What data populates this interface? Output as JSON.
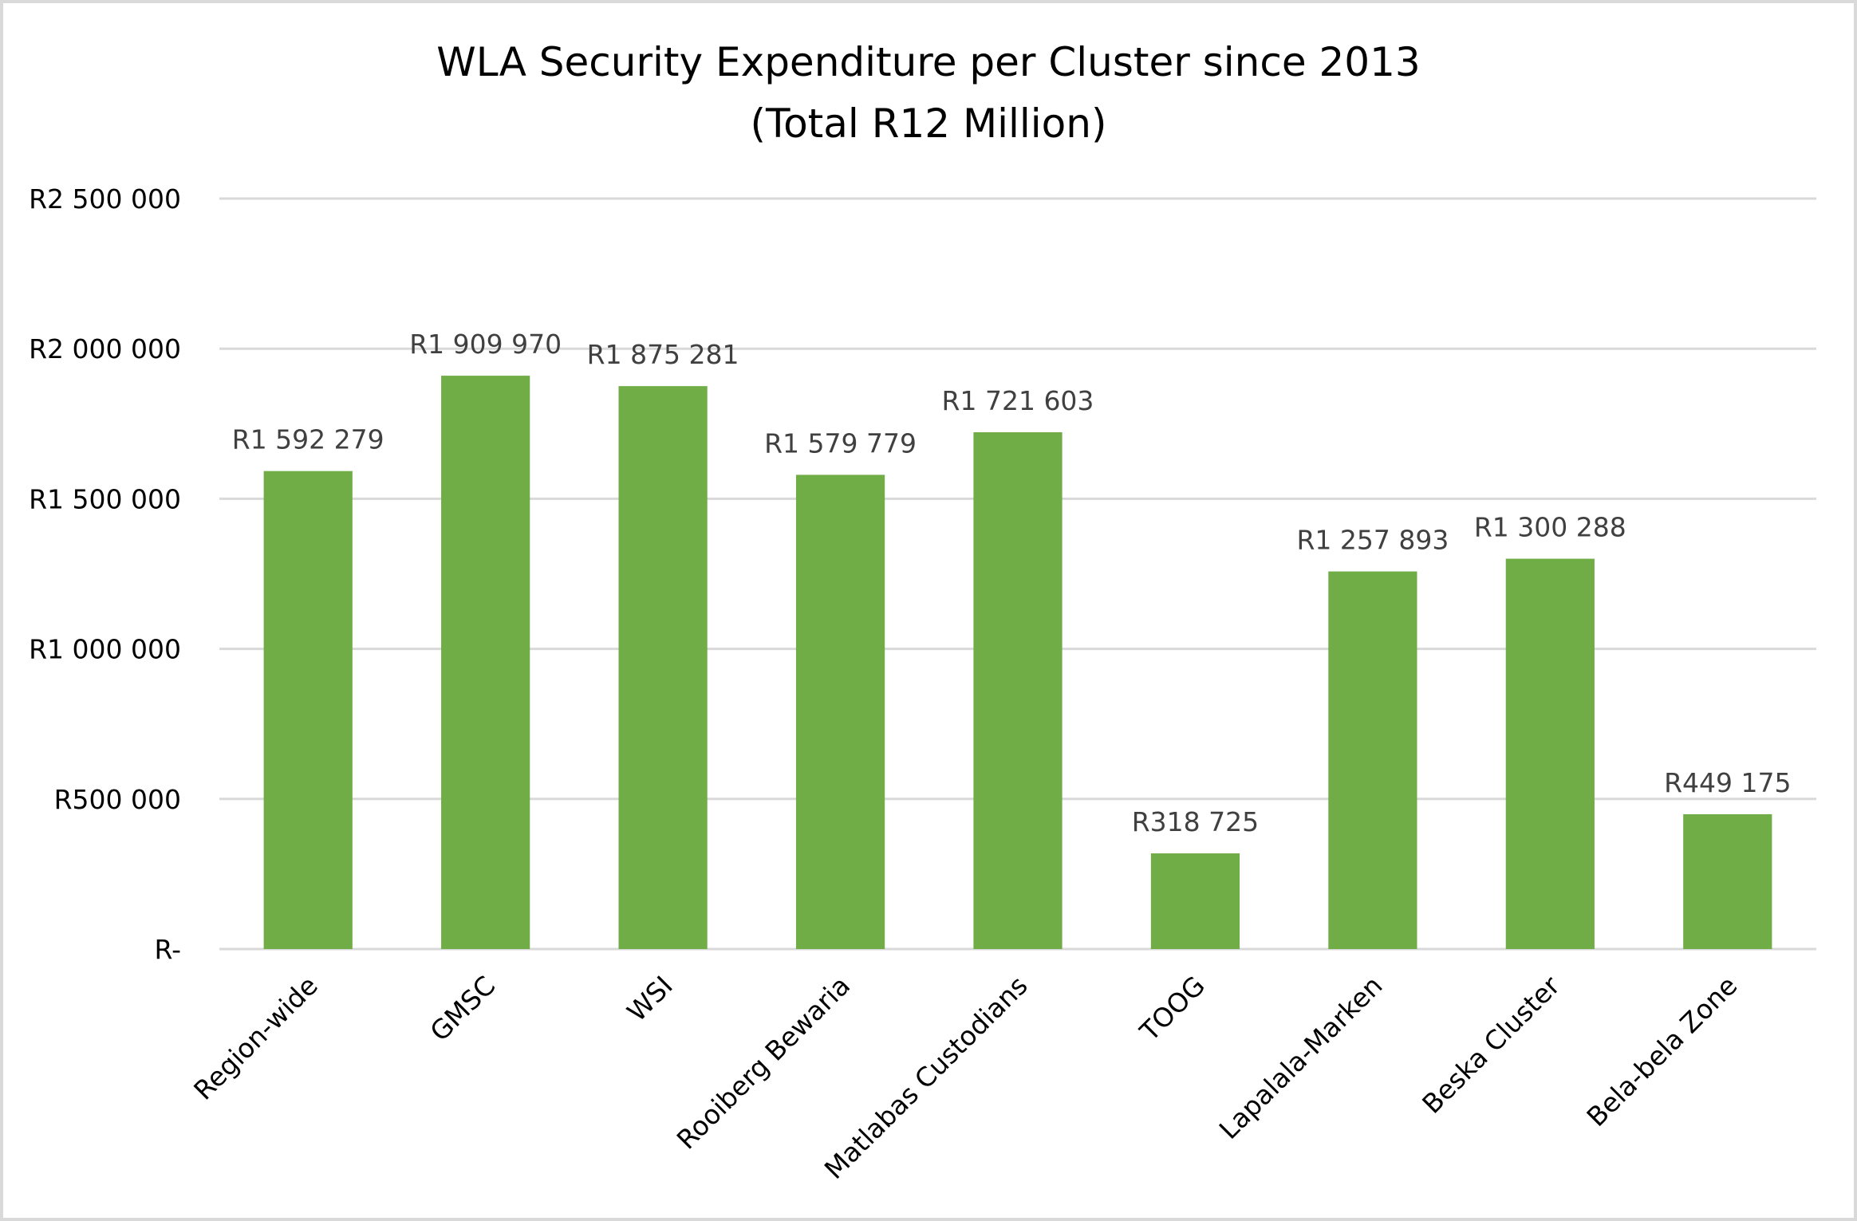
{
  "chart_data": {
    "type": "bar",
    "title": "WLA Security Expenditure per Cluster since 2013",
    "subtitle": "(Total R12 Million)",
    "xlabel": "",
    "ylabel": "",
    "categories": [
      "Region-wide",
      "GMSC",
      "WSI",
      "Rooiberg Bewaria",
      "Matlabas Custodians",
      "TOOG",
      "Lapalala-Marken",
      "Beska Cluster",
      "Bela-bela Zone"
    ],
    "values": [
      1592279,
      1909970,
      1875281,
      1579779,
      1721603,
      318725,
      1257893,
      1300288,
      449175
    ],
    "data_labels": [
      "R1 592 279",
      "R1 909 970",
      "R1 875 281",
      "R1 579 779",
      "R1 721 603",
      "R318 725",
      "R1 257 893",
      "R1 300 288",
      "R449 175"
    ],
    "ylim": [
      0,
      2500000
    ],
    "yticks": [
      0,
      500000,
      1000000,
      1500000,
      2000000,
      2500000
    ],
    "ytick_labels": [
      "R-",
      "R500 000",
      "R1 000 000",
      "R1 500 000",
      "R2 000 000",
      "R2 500 000"
    ],
    "grid": true,
    "legend": "none",
    "colors": {
      "bar": "#70ad47",
      "grid": "#d9d9d9",
      "data_label": "#404040",
      "border": "#d9d9d9"
    }
  }
}
